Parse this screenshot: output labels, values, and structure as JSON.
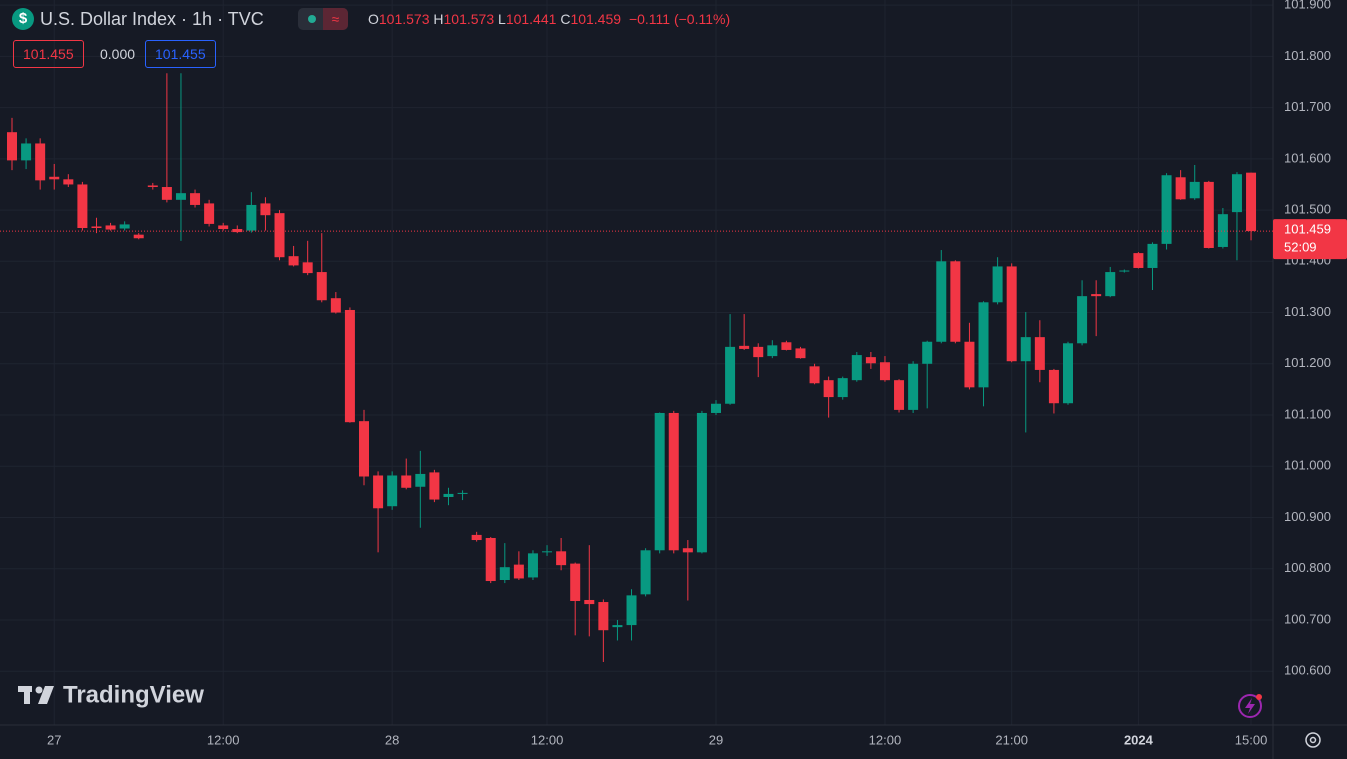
{
  "chart_data": {
    "type": "candlestick",
    "title": "U.S. Dollar Index · 1h · TVC",
    "ohlc_legend": {
      "o_label": "O",
      "open": 101.573,
      "h_label": "H",
      "high": 101.573,
      "l_label": "L",
      "low": 101.441,
      "c_label": "C",
      "close": 101.459,
      "change": "−0.111 (−0.11%)"
    },
    "indicator_values": [
      "101.455",
      "0.000",
      "101.455"
    ],
    "last_price": 101.459,
    "countdown": "52:09",
    "watermark": "TradingView",
    "up_color": "#089981",
    "down_color": "#f23645",
    "grid": true,
    "categories": [
      null,
      null,
      null,
      "27",
      null,
      null,
      null,
      null,
      null,
      null,
      null,
      null,
      null,
      null,
      null,
      "12:00",
      null,
      null,
      null,
      null,
      null,
      null,
      null,
      null,
      null,
      null,
      null,
      "28",
      null,
      null,
      null,
      null,
      null,
      null,
      null,
      null,
      null,
      null,
      "12:00",
      null,
      null,
      null,
      null,
      null,
      null,
      null,
      null,
      null,
      null,
      null,
      "29",
      null,
      null,
      null,
      null,
      null,
      null,
      null,
      null,
      null,
      null,
      null,
      "12:00",
      null,
      null,
      null,
      null,
      null,
      null,
      null,
      null,
      "21:00",
      null,
      null,
      null,
      null,
      null,
      null,
      null,
      null,
      "2024",
      null,
      null,
      null,
      null,
      null,
      null,
      null,
      "15:00"
    ],
    "open": [
      101.652,
      101.597,
      101.63,
      101.565,
      101.56,
      101.55,
      101.468,
      101.47,
      101.464,
      101.452,
      101.548,
      101.545,
      101.52,
      101.533,
      101.513,
      101.47,
      101.463,
      101.46,
      101.513,
      101.494,
      101.41,
      101.398,
      101.379,
      101.328,
      101.305,
      101.088,
      100.982,
      100.922,
      100.982,
      100.96,
      100.988,
      100.94,
      100.946,
      100.866,
      100.86,
      100.778,
      100.808,
      100.783,
      100.832,
      100.834,
      100.81,
      100.739,
      100.735,
      100.686,
      100.69,
      100.75,
      100.836,
      101.104,
      100.84,
      100.832,
      101.104,
      101.122,
      101.235,
      101.233,
      101.215,
      101.242,
      101.23,
      101.195,
      101.168,
      101.135,
      101.168,
      101.213,
      101.203,
      101.168,
      101.11,
      101.2,
      101.243,
      101.4,
      101.243,
      101.154,
      101.32,
      101.39,
      101.205,
      101.252,
      101.188,
      101.123,
      101.24,
      101.336,
      101.332,
      101.38,
      101.416,
      101.387,
      101.434,
      101.564,
      101.523,
      101.555,
      101.428,
      101.496,
      101.573
    ],
    "high": [
      101.68,
      101.64,
      101.64,
      101.59,
      101.57,
      101.555,
      101.485,
      101.475,
      101.478,
      101.455,
      101.553,
      101.767,
      101.767,
      101.54,
      101.52,
      101.475,
      101.47,
      101.535,
      101.525,
      101.5,
      101.43,
      101.44,
      101.455,
      101.34,
      101.31,
      101.11,
      100.99,
      100.99,
      101.015,
      101.03,
      100.993,
      100.958,
      100.953,
      100.872,
      100.862,
      100.85,
      100.834,
      100.836,
      100.846,
      100.86,
      100.812,
      100.846,
      100.74,
      100.7,
      100.76,
      100.84,
      101.105,
      101.108,
      100.856,
      101.108,
      101.129,
      101.297,
      101.297,
      101.24,
      101.246,
      101.245,
      101.233,
      101.2,
      101.175,
      101.175,
      101.223,
      101.223,
      101.215,
      101.17,
      101.205,
      101.245,
      101.422,
      101.402,
      101.28,
      101.322,
      101.408,
      101.396,
      101.301,
      101.285,
      101.19,
      101.243,
      101.363,
      101.363,
      101.389,
      101.384,
      101.418,
      101.437,
      101.572,
      101.578,
      101.588,
      101.557,
      101.504,
      101.574,
      101.573
    ],
    "low": [
      101.578,
      101.58,
      101.54,
      101.54,
      101.545,
      101.46,
      101.455,
      101.46,
      101.46,
      101.443,
      101.54,
      101.515,
      101.44,
      101.505,
      101.468,
      101.46,
      101.455,
      101.456,
      101.46,
      101.402,
      101.39,
      101.373,
      101.32,
      101.298,
      101.085,
      100.963,
      100.832,
      100.915,
      100.955,
      100.88,
      100.93,
      100.924,
      100.934,
      100.853,
      100.772,
      100.772,
      100.778,
      100.778,
      100.825,
      100.797,
      100.67,
      100.668,
      100.618,
      100.66,
      100.66,
      100.746,
      100.83,
      100.83,
      100.738,
      100.83,
      101.1,
      101.12,
      101.227,
      101.174,
      101.211,
      101.226,
      101.21,
      101.16,
      101.095,
      101.13,
      101.165,
      101.19,
      101.165,
      101.105,
      101.104,
      101.113,
      101.24,
      101.24,
      101.15,
      101.117,
      101.316,
      101.203,
      101.066,
      101.164,
      101.103,
      101.12,
      101.236,
      101.254,
      101.33,
      101.378,
      101.386,
      101.344,
      101.423,
      101.52,
      101.52,
      101.425,
      101.425,
      101.402,
      101.441
    ],
    "close": [
      101.597,
      101.63,
      101.558,
      101.56,
      101.55,
      101.465,
      101.465,
      101.462,
      101.472,
      101.445,
      101.545,
      101.52,
      101.533,
      101.51,
      101.473,
      101.463,
      101.457,
      101.51,
      101.49,
      101.408,
      101.392,
      101.377,
      101.324,
      101.3,
      101.086,
      100.98,
      100.918,
      100.982,
      100.958,
      100.985,
      100.935,
      100.946,
      100.948,
      100.856,
      100.776,
      100.803,
      100.781,
      100.83,
      100.834,
      100.807,
      100.737,
      100.731,
      100.68,
      100.69,
      100.748,
      100.836,
      101.104,
      100.836,
      100.832,
      101.104,
      101.122,
      101.233,
      101.229,
      101.213,
      101.236,
      101.227,
      101.211,
      101.162,
      101.135,
      101.172,
      101.217,
      101.201,
      101.168,
      101.11,
      101.2,
      101.243,
      101.4,
      101.243,
      101.154,
      101.32,
      101.39,
      101.205,
      101.252,
      101.188,
      101.123,
      101.24,
      101.332,
      101.332,
      101.379,
      101.382,
      101.387,
      101.434,
      101.568,
      101.521,
      101.555,
      101.426,
      101.492,
      101.57,
      101.459
    ],
    "ylim": [
      100.495,
      101.91
    ],
    "yticks": [
      {
        "value": 100.6,
        "label": "100.600"
      },
      {
        "value": 100.7,
        "label": "100.700"
      },
      {
        "value": 100.8,
        "label": "100.800"
      },
      {
        "value": 100.9,
        "label": "100.900"
      },
      {
        "value": 101.0,
        "label": "101.000"
      },
      {
        "value": 101.1,
        "label": "101.100"
      },
      {
        "value": 101.2,
        "label": "101.200"
      },
      {
        "value": 101.3,
        "label": "101.300"
      },
      {
        "value": 101.4,
        "label": "101.400"
      },
      {
        "value": 101.5,
        "label": "101.500"
      },
      {
        "value": 101.6,
        "label": "101.600"
      },
      {
        "value": 101.7,
        "label": "101.700"
      },
      {
        "value": 101.8,
        "label": "101.800"
      },
      {
        "value": 101.9,
        "label": "101.900"
      }
    ]
  }
}
